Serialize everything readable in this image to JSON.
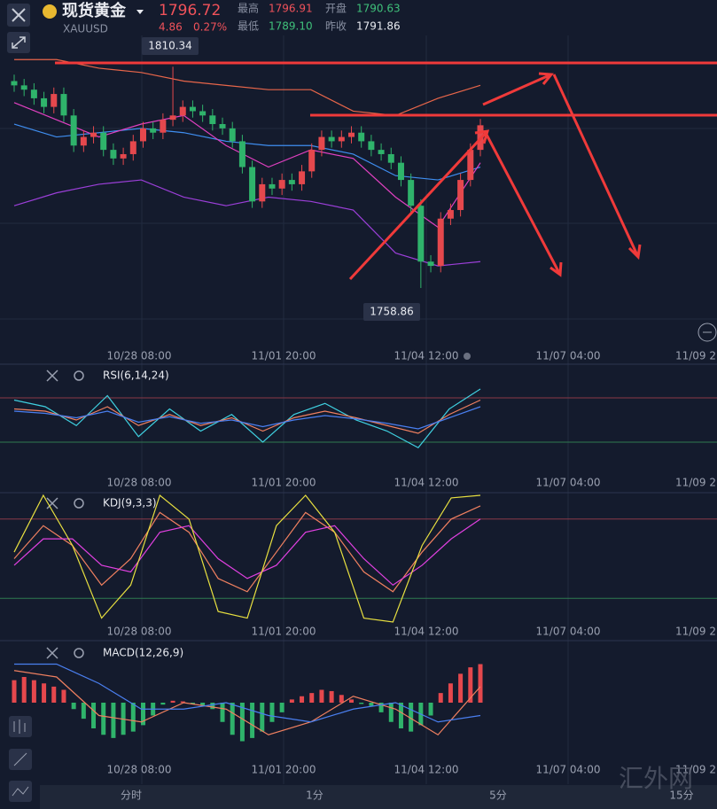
{
  "header": {
    "name": "现货黄金",
    "symbol": "XAUUSD",
    "price": "1796.72",
    "change": "4.86",
    "change_pct": "0.27%",
    "high_label": "最高",
    "high": "1796.91",
    "open_label": "开盘",
    "open": "1790.63",
    "low_label": "最低",
    "low": "1789.10",
    "prev_close_label": "昨收",
    "prev_close": "1791.86"
  },
  "time_labels": [
    "10/28 08:00",
    "11/01 20:00",
    "11/04 12:00",
    "11/07 04:00",
    "11/09 2"
  ],
  "main_chart": {
    "type": "candlestick",
    "ylim": [
      1750,
      1817
    ],
    "up_color": "#e5484d",
    "down_color": "#2fb36b",
    "open": [
      1807,
      1806,
      1805,
      1803,
      1801,
      1804,
      1799,
      1792,
      1794,
      1795,
      1791,
      1789,
      1790,
      1793,
      1796,
      1795,
      1798,
      1799,
      1801,
      1800,
      1799,
      1797,
      1796,
      1793,
      1787,
      1779,
      1783,
      1782,
      1784,
      1783,
      1786,
      1791,
      1794,
      1793,
      1794,
      1795,
      1793,
      1791,
      1790,
      1788,
      1784,
      1778,
      1765,
      1764,
      1775,
      1777,
      1784,
      1791
    ],
    "high": [
      1808.5,
      1807.5,
      1806.5,
      1804.5,
      1805.5,
      1805.5,
      1800.5,
      1795.5,
      1796.5,
      1796.5,
      1792.5,
      1791.5,
      1794.5,
      1797.5,
      1797.5,
      1799.5,
      1810.34,
      1802.5,
      1802.5,
      1801.5,
      1800.5,
      1798.5,
      1797.5,
      1794.5,
      1788.5,
      1784.5,
      1784.5,
      1785.5,
      1785.5,
      1787.5,
      1792.5,
      1795.5,
      1795.5,
      1795.5,
      1796.5,
      1796.5,
      1794.5,
      1792.5,
      1791.5,
      1789.5,
      1785.5,
      1779.5,
      1766.5,
      1776.5,
      1778.5,
      1785.5,
      1792.5,
      1798.2
    ],
    "low": [
      1804.5,
      1803.5,
      1801.5,
      1799.5,
      1799.5,
      1797.5,
      1790.5,
      1790.5,
      1792.5,
      1789.5,
      1787.5,
      1787.5,
      1788.5,
      1791.5,
      1793.5,
      1793.5,
      1796.5,
      1797.5,
      1798.5,
      1797.5,
      1795.5,
      1794.5,
      1791.5,
      1785.5,
      1777.5,
      1777.5,
      1780.5,
      1780.5,
      1781.5,
      1781.5,
      1784.5,
      1789.5,
      1791.5,
      1791.5,
      1792.5,
      1791.5,
      1789.5,
      1788.5,
      1786.5,
      1782.5,
      1776.5,
      1758.86,
      1762.5,
      1762.5,
      1773.5,
      1775.5,
      1782.5,
      1789.5
    ],
    "close": [
      1806,
      1805,
      1803,
      1801,
      1804,
      1799,
      1792,
      1794,
      1795,
      1791,
      1789,
      1790,
      1793,
      1796,
      1795,
      1798,
      1799,
      1801,
      1800,
      1799,
      1797,
      1796,
      1793,
      1787,
      1779,
      1783,
      1782,
      1784,
      1783,
      1786,
      1791,
      1794,
      1793,
      1794,
      1795,
      1793,
      1791,
      1790,
      1788,
      1784,
      1778,
      1765,
      1764,
      1775,
      1777,
      1784,
      1791,
      1796.72
    ],
    "max_label": "1810.34",
    "min_label": "1758.86",
    "overlays": [
      {
        "color": "#e8664a",
        "values": [
          1812,
          1812,
          1810,
          1809,
          1807,
          1806,
          1805,
          1805,
          1800,
          1799,
          1803,
          1806
        ]
      },
      {
        "color": "#3f8ef0",
        "values": [
          1797,
          1794,
          1795,
          1796,
          1795,
          1793,
          1792,
          1792,
          1790,
          1785,
          1784,
          1787
        ]
      },
      {
        "color": "#9b3fd8",
        "values": [
          1778,
          1781,
          1783,
          1784,
          1780,
          1778,
          1780,
          1779,
          1777,
          1767,
          1764,
          1765
        ]
      },
      {
        "color": "#e040c0",
        "values": [
          1802,
          1798,
          1794,
          1797,
          1799,
          1792,
          1787,
          1791,
          1789,
          1780,
          1773,
          1788
        ]
      }
    ]
  },
  "rsi": {
    "label": "RSI(6,14,24)",
    "ylim": [
      0,
      100
    ],
    "levels": [
      70,
      30
    ],
    "series": [
      {
        "color": "#3fd0e0",
        "values": [
          68,
          62,
          45,
          72,
          35,
          60,
          40,
          55,
          30,
          55,
          65,
          50,
          40,
          25,
          60,
          78
        ]
      },
      {
        "color": "#f08060",
        "values": [
          60,
          58,
          50,
          62,
          45,
          55,
          45,
          52,
          40,
          52,
          58,
          52,
          45,
          38,
          55,
          68
        ]
      },
      {
        "color": "#4a7ff0",
        "values": [
          58,
          56,
          52,
          58,
          48,
          53,
          47,
          50,
          44,
          50,
          54,
          51,
          47,
          42,
          52,
          62
        ]
      }
    ]
  },
  "kdj": {
    "label": "KDJ(9,3,3)",
    "ylim": [
      0,
      100
    ],
    "levels": [
      80,
      20
    ],
    "series": [
      {
        "color": "#f08060",
        "values": [
          50,
          75,
          60,
          30,
          50,
          85,
          70,
          35,
          25,
          55,
          85,
          70,
          40,
          25,
          55,
          80,
          90
        ]
      },
      {
        "color": "#e040e0",
        "values": [
          45,
          65,
          65,
          45,
          40,
          70,
          75,
          50,
          35,
          45,
          70,
          75,
          50,
          30,
          45,
          65,
          80
        ]
      },
      {
        "color": "#e8e040",
        "values": [
          55,
          98,
          60,
          5,
          30,
          98,
          80,
          10,
          5,
          75,
          98,
          70,
          5,
          2,
          60,
          96,
          98
        ]
      }
    ]
  },
  "macd": {
    "label": "MACD(12,26,9)",
    "ylim": [
      -8,
      8
    ],
    "histogram": [
      3.5,
      4,
      3.5,
      3,
      2.5,
      2,
      -1,
      -2.5,
      -4,
      -5,
      -5.5,
      -5,
      -4.5,
      -3.5,
      -2,
      -0.3,
      0.3,
      0.2,
      -0.2,
      -0.5,
      -1,
      -3,
      -5,
      -6,
      -5.5,
      -4.5,
      -3,
      -1.5,
      0.5,
      1,
      1.5,
      2,
      1.8,
      1.2,
      0.5,
      -0.2,
      -0.5,
      -1.5,
      -3,
      -4,
      -4.5,
      -3.5,
      -2,
      1.5,
      3,
      4.5,
      5.5,
      6
    ],
    "series": [
      {
        "color": "#f08060",
        "values": [
          5,
          4,
          -2,
          -3,
          0,
          -1,
          -5,
          -3,
          1,
          -1,
          -5,
          2.5
        ]
      },
      {
        "color": "#4a7ff0",
        "values": [
          6,
          6,
          3,
          -1,
          -1,
          0,
          -2,
          -3,
          -1,
          0,
          -3,
          -2
        ]
      }
    ]
  },
  "tabs": [
    "分时",
    "1分",
    "5分",
    "15分"
  ],
  "watermark": "汇外网"
}
